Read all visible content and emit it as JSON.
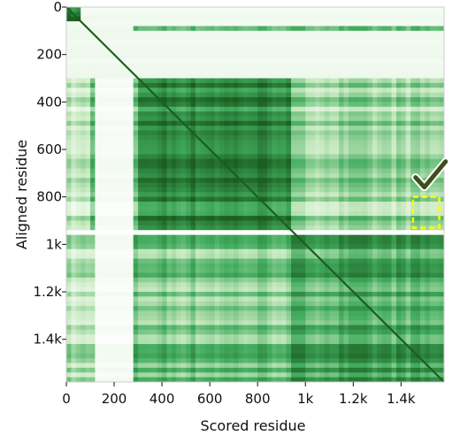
{
  "chart_data": {
    "type": "heatmap",
    "title": "",
    "xlabel": "Scored residue",
    "ylabel": "Aligned residue",
    "xlim": [
      0,
      1580
    ],
    "ylim": [
      0,
      1580
    ],
    "x_ticks": [
      {
        "value": 0,
        "label": "0"
      },
      {
        "value": 200,
        "label": "200"
      },
      {
        "value": 400,
        "label": "400"
      },
      {
        "value": 600,
        "label": "600"
      },
      {
        "value": 800,
        "label": "800"
      },
      {
        "value": 1000,
        "label": "1k"
      },
      {
        "value": 1200,
        "label": "1.2k"
      },
      {
        "value": 1400,
        "label": "1.4k"
      }
    ],
    "y_ticks": [
      {
        "value": 0,
        "label": "0"
      },
      {
        "value": 200,
        "label": "200"
      },
      {
        "value": 400,
        "label": "400"
      },
      {
        "value": 600,
        "label": "600"
      },
      {
        "value": 800,
        "label": "800"
      },
      {
        "value": 1000,
        "label": "1k"
      },
      {
        "value": 1200,
        "label": "1.2k"
      },
      {
        "value": 1400,
        "label": "1.4k"
      }
    ],
    "colormap": [
      "#ffffff",
      "#c7e9c0",
      "#41ab5d",
      "#1b5e20"
    ],
    "intensity_scale": "0 (white) to 1 (dark green)",
    "blocks": [
      {
        "x": [
          0,
          1580
        ],
        "y": [
          0,
          1580
        ],
        "intensity": 0.08
      },
      {
        "x": [
          0,
          1580
        ],
        "y": [
          300,
          950
        ],
        "intensity": 0.28
      },
      {
        "x": [
          100,
          130
        ],
        "y": [
          300,
          1580
        ],
        "intensity": 0.55
      },
      {
        "x": [
          280,
          1580
        ],
        "y": [
          300,
          950
        ],
        "intensity": 0.45
      },
      {
        "x": [
          300,
          950
        ],
        "y": [
          300,
          950
        ],
        "intensity": 0.82
      },
      {
        "x": [
          950,
          1580
        ],
        "y": [
          300,
          950
        ],
        "intensity": 0.42
      },
      {
        "x": [
          0,
          1580
        ],
        "y": [
          950,
          1580
        ],
        "intensity": 0.35
      },
      {
        "x": [
          280,
          1580
        ],
        "y": [
          950,
          1580
        ],
        "intensity": 0.55
      },
      {
        "x": [
          950,
          1580
        ],
        "y": [
          950,
          1580
        ],
        "intensity": 0.68
      },
      {
        "x": [
          0,
          60
        ],
        "y": [
          0,
          60
        ],
        "intensity": 0.95
      }
    ],
    "bands": [
      {
        "axis": "y",
        "range": [
          85,
          105
        ],
        "x": [
          280,
          1580
        ],
        "intensity": 0.5
      },
      {
        "axis": "x",
        "range": [
          130,
          280
        ],
        "y": [
          300,
          1580
        ],
        "intensity": 0.05
      },
      {
        "axis": "y",
        "range": [
          935,
          960
        ],
        "x": [
          0,
          1580
        ],
        "intensity": 0.02
      }
    ],
    "diagonal": {
      "from": 0,
      "to": 1580,
      "intensity": 1.0
    },
    "highlight": {
      "shape": "dashed-rectangle",
      "color": "#ffff00",
      "x": [
        1450,
        1560
      ],
      "y": [
        800,
        930
      ],
      "marker": "checkmark-icon",
      "marker_color": "#3d4f1c"
    }
  }
}
